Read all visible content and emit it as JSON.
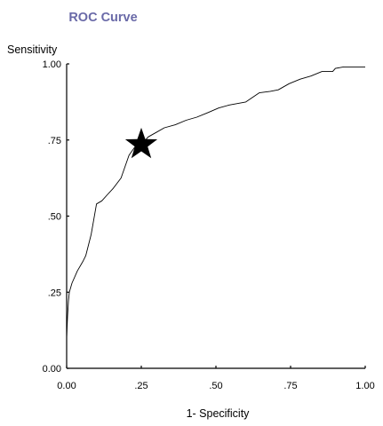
{
  "chart_data": {
    "type": "line",
    "title": "ROC Curve",
    "xlabel": "1- Specificity",
    "ylabel": "Sensitivity",
    "xlim": [
      0,
      1
    ],
    "ylim": [
      0,
      1
    ],
    "xticks": [
      0,
      0.25,
      0.5,
      0.75,
      1
    ],
    "yticks": [
      0,
      0.25,
      0.5,
      0.75,
      1
    ],
    "xtick_labels": [
      "0.00",
      ".25",
      ".50",
      ".75",
      "1.00"
    ],
    "ytick_labels": [
      "0.00",
      ".25",
      ".50",
      ".75",
      "1.00"
    ],
    "grid": false,
    "legend": "none",
    "colors": {
      "title": "#6a6aa8",
      "line": "#000000",
      "axis": "#000000",
      "marker": "#000000"
    },
    "series": [
      {
        "x": [
          0,
          0.003,
          0.006,
          0.009,
          0.018,
          0.036,
          0.054,
          0.064,
          0.082,
          0.1,
          0.118,
          0.136,
          0.155,
          0.182,
          0.209,
          0.227,
          0.245,
          0.264,
          0.273,
          0.3,
          0.327,
          0.364,
          0.4,
          0.436,
          0.473,
          0.509,
          0.545,
          0.6,
          0.645,
          0.682,
          0.709,
          0.745,
          0.782,
          0.818,
          0.855,
          0.891,
          0.9,
          0.927,
          1.0
        ],
        "y": [
          0.1,
          0.17,
          0.22,
          0.25,
          0.28,
          0.32,
          0.35,
          0.37,
          0.44,
          0.54,
          0.55,
          0.57,
          0.59,
          0.625,
          0.7,
          0.725,
          0.745,
          0.75,
          0.76,
          0.775,
          0.79,
          0.8,
          0.815,
          0.825,
          0.84,
          0.855,
          0.865,
          0.875,
          0.905,
          0.91,
          0.915,
          0.935,
          0.95,
          0.96,
          0.975,
          0.975,
          0.985,
          0.99,
          0.99
        ]
      }
    ],
    "markers": [
      {
        "shape": "star",
        "x": 0.25,
        "y": 0.735
      }
    ]
  }
}
